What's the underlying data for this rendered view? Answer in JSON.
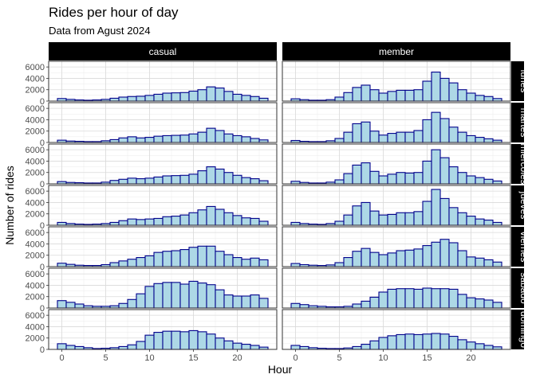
{
  "chart_data": {
    "type": "bar",
    "title": "Rides per hour of day",
    "subtitle": "Data from Agust 2024",
    "xlabel": "Hour",
    "ylabel": "Number of rides",
    "xlim": [
      -1.5,
      24.5
    ],
    "ylim": [
      0,
      7000
    ],
    "x_ticks": [
      0,
      5,
      10,
      15,
      20
    ],
    "y_ticks": [
      0,
      2000,
      4000,
      6000
    ],
    "grid": true,
    "facet_columns": [
      "casual",
      "member"
    ],
    "facet_rows": [
      "lunes",
      "martes",
      "miércoles",
      "jueves",
      "viernes",
      "sábado",
      "domingo"
    ],
    "bar_fill": "#add8e6",
    "bar_outline": "#00008b",
    "hours": [
      0,
      1,
      2,
      3,
      4,
      5,
      6,
      7,
      8,
      9,
      10,
      11,
      12,
      13,
      14,
      15,
      16,
      17,
      18,
      19,
      20,
      21,
      22,
      23
    ],
    "panels": [
      {
        "user_type": "casual",
        "day": "lunes",
        "values": [
          450,
          300,
          200,
          150,
          200,
          300,
          500,
          700,
          800,
          850,
          1000,
          1200,
          1400,
          1450,
          1500,
          1750,
          2000,
          2500,
          2300,
          1700,
          1200,
          1000,
          800,
          500
        ]
      },
      {
        "user_type": "member",
        "day": "lunes",
        "values": [
          400,
          250,
          150,
          150,
          250,
          700,
          1500,
          2400,
          2800,
          2000,
          1400,
          1700,
          1900,
          1900,
          2000,
          3500,
          5100,
          4000,
          3200,
          2000,
          1400,
          1000,
          800,
          450
        ]
      },
      {
        "user_type": "casual",
        "day": "martes",
        "values": [
          400,
          250,
          200,
          150,
          150,
          300,
          500,
          800,
          1000,
          800,
          900,
          1100,
          1200,
          1250,
          1300,
          1500,
          1800,
          2500,
          2100,
          1500,
          1200,
          1000,
          700,
          450
        ]
      },
      {
        "user_type": "member",
        "day": "martes",
        "values": [
          350,
          200,
          150,
          150,
          300,
          700,
          1800,
          3300,
          3600,
          2000,
          1300,
          1600,
          1800,
          1800,
          2100,
          4000,
          5300,
          4200,
          2700,
          1800,
          1200,
          900,
          650,
          400
        ]
      },
      {
        "user_type": "casual",
        "day": "miércoles",
        "values": [
          400,
          250,
          200,
          150,
          150,
          300,
          600,
          800,
          1000,
          900,
          1000,
          1200,
          1400,
          1450,
          1500,
          1700,
          2300,
          3000,
          2600,
          2000,
          1500,
          1100,
          900,
          550
        ]
      },
      {
        "user_type": "member",
        "day": "miércoles",
        "values": [
          450,
          250,
          150,
          150,
          300,
          700,
          1800,
          3300,
          3700,
          2200,
          1400,
          1700,
          2000,
          1900,
          2000,
          4000,
          6000,
          4600,
          3000,
          2000,
          1400,
          1100,
          800,
          500
        ]
      },
      {
        "user_type": "casual",
        "day": "jueves",
        "values": [
          500,
          300,
          200,
          150,
          200,
          300,
          500,
          800,
          1100,
          1000,
          1100,
          1200,
          1500,
          1600,
          1800,
          2200,
          2700,
          3300,
          2800,
          2200,
          1700,
          1300,
          1200,
          700
        ]
      },
      {
        "user_type": "member",
        "day": "jueves",
        "values": [
          500,
          300,
          200,
          150,
          300,
          700,
          1800,
          3400,
          4000,
          2500,
          1800,
          1900,
          2200,
          2200,
          2400,
          4200,
          6300,
          4700,
          3100,
          2200,
          1600,
          1100,
          900,
          500
        ]
      },
      {
        "user_type": "casual",
        "day": "viernes",
        "values": [
          600,
          400,
          250,
          200,
          200,
          350,
          700,
          1000,
          1300,
          1600,
          1900,
          2500,
          2700,
          2800,
          3000,
          3400,
          3600,
          3600,
          2700,
          2100,
          1600,
          1300,
          1500,
          1200
        ]
      },
      {
        "user_type": "member",
        "day": "viernes",
        "values": [
          550,
          350,
          250,
          200,
          300,
          700,
          1600,
          2700,
          3200,
          2500,
          2100,
          2400,
          2800,
          2900,
          3100,
          3700,
          4300,
          4800,
          4200,
          2800,
          1700,
          1500,
          1200,
          800
        ]
      },
      {
        "user_type": "casual",
        "day": "sábado",
        "values": [
          1300,
          1000,
          700,
          400,
          300,
          300,
          400,
          800,
          1500,
          2500,
          3800,
          4300,
          4500,
          4500,
          4200,
          4700,
          4400,
          4100,
          3200,
          2300,
          2100,
          2100,
          2300,
          1700
        ]
      },
      {
        "user_type": "member",
        "day": "sábado",
        "values": [
          800,
          600,
          400,
          300,
          200,
          200,
          300,
          700,
          1200,
          1900,
          2800,
          3300,
          3400,
          3400,
          3300,
          3500,
          3400,
          3400,
          3300,
          2400,
          1800,
          1600,
          1400,
          1000
        ]
      },
      {
        "user_type": "casual",
        "day": "domingo",
        "values": [
          1000,
          700,
          500,
          300,
          150,
          200,
          300,
          500,
          800,
          1400,
          2500,
          3000,
          3200,
          3200,
          3100,
          3300,
          3100,
          2700,
          2000,
          1500,
          1100,
          900,
          700,
          400
        ]
      },
      {
        "user_type": "member",
        "day": "domingo",
        "values": [
          700,
          500,
          300,
          200,
          150,
          150,
          250,
          500,
          900,
          1500,
          2100,
          2400,
          2600,
          2700,
          2600,
          2700,
          2800,
          2700,
          2300,
          1700,
          1300,
          1000,
          700,
          450
        ]
      }
    ]
  }
}
